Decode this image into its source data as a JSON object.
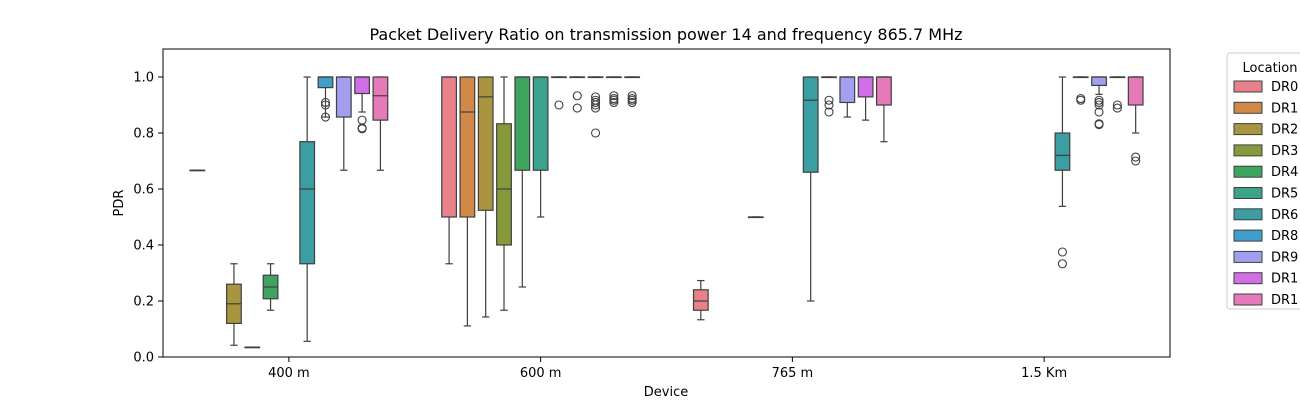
{
  "chart_data": {
    "type": "box",
    "title": "Packet Delivery Ratio on transmission power 14 and frequency 865.7 MHz",
    "xlabel": "Device",
    "ylabel": "PDR",
    "ylim": [
      0,
      1.1
    ],
    "yticks": [
      "0.0",
      "0.2",
      "0.4",
      "0.6",
      "0.8",
      "1.0"
    ],
    "categories": [
      "400 m",
      "600 m",
      "765 m",
      "1.5 Km"
    ],
    "grid": false,
    "legend": {
      "title": "Location",
      "placement": "outside-right",
      "entries": [
        "DR0",
        "DR1",
        "DR2",
        "DR3",
        "DR4",
        "DR5",
        "DR6",
        "DR8",
        "DR9",
        "DR1",
        "DR1"
      ]
    },
    "series": [
      {
        "name": "DR0",
        "color": "#e8818a",
        "boxes": [
          {
            "category": "400 m",
            "min": 0.667,
            "q1": 0.667,
            "median": 0.667,
            "q3": 0.667,
            "max": 0.667,
            "outliers": []
          },
          {
            "category": "600 m",
            "min": 0.333,
            "q1": 0.5,
            "median": 1.0,
            "q3": 1.0,
            "max": 1.0,
            "outliers": []
          },
          {
            "category": "765 m",
            "min": 0.133,
            "q1": 0.167,
            "median": 0.2,
            "q3": 0.24,
            "max": 0.273,
            "outliers": []
          },
          null
        ]
      },
      {
        "name": "DR1",
        "color": "#d1894a",
        "boxes": [
          null,
          {
            "category": "600 m",
            "min": 0.111,
            "q1": 0.5,
            "median": 0.875,
            "q3": 1.0,
            "max": 1.0,
            "outliers": []
          },
          null,
          null
        ]
      },
      {
        "name": "DR2",
        "color": "#a9953f",
        "boxes": [
          {
            "category": "400 m",
            "min": 0.042,
            "q1": 0.12,
            "median": 0.19,
            "q3": 0.26,
            "max": 0.333,
            "outliers": []
          },
          {
            "category": "600 m",
            "min": 0.143,
            "q1": 0.524,
            "median": 0.929,
            "q3": 1.0,
            "max": 1.0,
            "outliers": []
          },
          null,
          null
        ]
      },
      {
        "name": "DR3",
        "color": "#859a3c",
        "boxes": [
          {
            "category": "400 m",
            "min": 0.035,
            "q1": 0.035,
            "median": 0.035,
            "q3": 0.035,
            "max": 0.035,
            "outliers": []
          },
          {
            "category": "600 m",
            "min": 0.167,
            "q1": 0.4,
            "median": 0.6,
            "q3": 0.833,
            "max": 1.0,
            "outliers": []
          },
          {
            "category": "765 m",
            "min": 0.5,
            "q1": 0.5,
            "median": 0.5,
            "q3": 0.5,
            "max": 0.5,
            "outliers": []
          },
          null
        ]
      },
      {
        "name": "DR4",
        "color": "#3ea460",
        "boxes": [
          {
            "category": "400 m",
            "min": 0.167,
            "q1": 0.208,
            "median": 0.25,
            "q3": 0.292,
            "max": 0.333,
            "outliers": []
          },
          {
            "category": "600 m",
            "min": 0.25,
            "q1": 0.667,
            "median": 1.0,
            "q3": 1.0,
            "max": 1.0,
            "outliers": []
          },
          null,
          null
        ]
      },
      {
        "name": "DR5",
        "color": "#3ba38d",
        "boxes": [
          null,
          {
            "category": "600 m",
            "min": 0.5,
            "q1": 0.667,
            "median": 1.0,
            "q3": 1.0,
            "max": 1.0,
            "outliers": []
          },
          null,
          null
        ]
      },
      {
        "name": "DR6",
        "color": "#3a9ea3",
        "boxes": [
          {
            "category": "400 m",
            "min": 0.056,
            "q1": 0.333,
            "median": 0.6,
            "q3": 0.769,
            "max": 1.0,
            "outliers": []
          },
          {
            "category": "600 m",
            "min": 1.0,
            "q1": 1.0,
            "median": 1.0,
            "q3": 1.0,
            "max": 1.0,
            "outliers": [
              0.9
            ]
          },
          {
            "category": "765 m",
            "min": 0.2,
            "q1": 0.66,
            "median": 0.917,
            "q3": 1.0,
            "max": 1.0,
            "outliers": []
          },
          {
            "category": "1.5 Km",
            "min": 0.538,
            "q1": 0.667,
            "median": 0.72,
            "q3": 0.8,
            "max": 1.0,
            "outliers": [
              0.375,
              0.333
            ]
          }
        ]
      },
      {
        "name": "DR8",
        "color": "#3f9fca",
        "boxes": [
          {
            "category": "400 m",
            "min": 0.857,
            "q1": 0.962,
            "median": 1.0,
            "q3": 1.0,
            "max": 1.0,
            "outliers": [
              0.909,
              0.9,
              0.857
            ]
          },
          {
            "category": "600 m",
            "min": 1.0,
            "q1": 1.0,
            "median": 1.0,
            "q3": 1.0,
            "max": 1.0,
            "outliers": [
              0.933,
              0.889
            ]
          },
          {
            "category": "765 m",
            "min": 1.0,
            "q1": 1.0,
            "median": 1.0,
            "q3": 1.0,
            "max": 1.0,
            "outliers": [
              0.917,
              0.9,
              0.875
            ]
          },
          {
            "category": "1.5 Km",
            "min": 1.0,
            "q1": 1.0,
            "median": 1.0,
            "q3": 1.0,
            "max": 1.0,
            "outliers": [
              0.923,
              0.917
            ]
          }
        ]
      },
      {
        "name": "DR9",
        "color": "#a29ff0",
        "boxes": [
          {
            "category": "400 m",
            "min": 0.667,
            "q1": 0.857,
            "median": 1.0,
            "q3": 1.0,
            "max": 1.0,
            "outliers": []
          },
          {
            "category": "600 m",
            "min": 1.0,
            "q1": 1.0,
            "median": 1.0,
            "q3": 1.0,
            "max": 1.0,
            "outliers": [
              0.929,
              0.917,
              0.909,
              0.9,
              0.889,
              0.8
            ]
          },
          {
            "category": "765 m",
            "min": 0.857,
            "q1": 0.909,
            "median": 1.0,
            "q3": 1.0,
            "max": 1.0,
            "outliers": []
          },
          {
            "category": "1.5 Km",
            "min": 0.938,
            "q1": 0.97,
            "median": 1.0,
            "q3": 1.0,
            "max": 1.0,
            "outliers": [
              0.917,
              0.909,
              0.9,
              0.875,
              0.833,
              0.83
            ]
          }
        ]
      },
      {
        "name": "DR1",
        "color": "#d16fe8",
        "boxes": [
          {
            "category": "400 m",
            "min": 0.875,
            "q1": 0.941,
            "median": 1.0,
            "q3": 1.0,
            "max": 1.0,
            "outliers": [
              0.846,
              0.818,
              0.815
            ]
          },
          {
            "category": "600 m",
            "min": 1.0,
            "q1": 1.0,
            "median": 1.0,
            "q3": 1.0,
            "max": 1.0,
            "outliers": [
              0.933,
              0.923,
              0.917,
              0.909
            ]
          },
          {
            "category": "765 m",
            "min": 0.846,
            "q1": 0.929,
            "median": 1.0,
            "q3": 1.0,
            "max": 1.0,
            "outliers": []
          },
          {
            "category": "1.5 Km",
            "min": 1.0,
            "q1": 1.0,
            "median": 1.0,
            "q3": 1.0,
            "max": 1.0,
            "outliers": [
              0.9,
              0.889
            ]
          }
        ]
      },
      {
        "name": "DR1",
        "color": "#e67ab9",
        "boxes": [
          {
            "category": "400 m",
            "min": 0.667,
            "q1": 0.846,
            "median": 0.933,
            "q3": 1.0,
            "max": 1.0,
            "outliers": []
          },
          {
            "category": "600 m",
            "min": 1.0,
            "q1": 1.0,
            "median": 1.0,
            "q3": 1.0,
            "max": 1.0,
            "outliers": [
              0.933,
              0.923,
              0.917,
              0.909
            ]
          },
          {
            "category": "765 m",
            "min": 0.769,
            "q1": 0.9,
            "median": 1.0,
            "q3": 1.0,
            "max": 1.0,
            "outliers": []
          },
          {
            "category": "1.5 Km",
            "min": 0.8,
            "q1": 0.9,
            "median": 1.0,
            "q3": 1.0,
            "max": 1.0,
            "outliers": [
              0.714,
              0.7
            ]
          }
        ]
      }
    ]
  }
}
